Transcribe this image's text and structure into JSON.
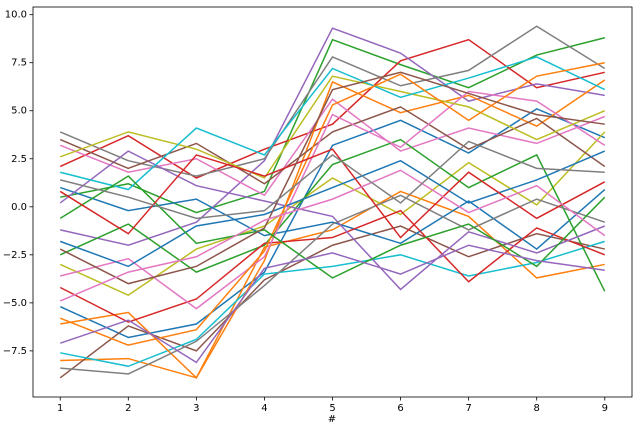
{
  "chart_data": {
    "type": "line",
    "x_label": "#",
    "x": [
      1,
      2,
      3,
      4,
      5,
      6,
      7,
      8,
      9
    ],
    "xlim": [
      0.6,
      9.4
    ],
    "xticks": [
      1,
      2,
      3,
      4,
      5,
      6,
      7,
      8,
      9
    ],
    "ylim": [
      -9.9,
      10.4
    ],
    "yticks": [
      {
        "value": -7.5,
        "label": "−7.5"
      },
      {
        "value": -5,
        "label": "−5.0"
      },
      {
        "value": -2.5,
        "label": "−2.5"
      },
      {
        "value": 0,
        "label": "0.0"
      },
      2.5,
      {
        "value": 5,
        "label": "5.0"
      },
      7.5,
      {
        "value": 10,
        "label": "10.0"
      }
    ],
    "series": [
      {
        "color": "#1f77b4",
        "values": [
          -5.2,
          -6.8,
          -6.1,
          -3.4,
          3.2,
          4.5,
          2.8,
          5.1,
          3.6
        ]
      },
      {
        "color": "#ff7f0e",
        "values": [
          -8.0,
          -7.9,
          -8.9,
          -2.1,
          -1.2,
          0.8,
          -0.5,
          -3.7,
          -3.0
        ]
      },
      {
        "color": "#2ca02c",
        "values": [
          0.5,
          1.2,
          -0.3,
          0.8,
          8.7,
          7.4,
          6.2,
          7.9,
          8.8
        ]
      },
      {
        "color": "#d62728",
        "values": [
          2.1,
          3.7,
          1.5,
          3.0,
          4.3,
          7.6,
          8.7,
          6.2,
          7.0
        ]
      },
      {
        "color": "#9467bd",
        "values": [
          -1.2,
          -2.0,
          -0.8,
          2.4,
          9.3,
          8.0,
          5.5,
          6.4,
          5.8
        ]
      },
      {
        "color": "#8c564b",
        "values": [
          -8.9,
          -6.2,
          -7.5,
          -3.8,
          -2.0,
          -1.0,
          -2.6,
          -1.4,
          -2.2
        ]
      },
      {
        "color": "#e377c2",
        "values": [
          3.2,
          1.8,
          2.5,
          0.6,
          5.6,
          2.9,
          4.1,
          3.3,
          4.7
        ]
      },
      {
        "color": "#7f7f7f",
        "values": [
          3.9,
          2.4,
          1.6,
          2.5,
          7.8,
          6.3,
          7.1,
          9.4,
          7.2
        ]
      },
      {
        "color": "#bcbd22",
        "values": [
          -3.0,
          -4.6,
          -2.2,
          -1.0,
          1.5,
          -0.4,
          2.3,
          0.1,
          3.9
        ]
      },
      {
        "color": "#17becf",
        "values": [
          -7.6,
          -8.3,
          -6.9,
          -3.5,
          -3.1,
          -2.5,
          -3.6,
          -2.9,
          -1.8
        ]
      },
      {
        "color": "#1f77b4",
        "values": [
          1.0,
          -0.2,
          0.4,
          -1.5,
          -0.8,
          -1.9,
          0.3,
          -2.2,
          0.9
        ]
      },
      {
        "color": "#ff7f0e",
        "values": [
          -6.1,
          -5.5,
          -8.9,
          -2.8,
          6.5,
          4.9,
          5.8,
          4.2,
          6.6
        ]
      },
      {
        "color": "#2ca02c",
        "values": [
          -2.5,
          -0.9,
          -3.4,
          -2.0,
          2.2,
          3.5,
          1.0,
          2.7,
          -4.4
        ]
      },
      {
        "color": "#d62728",
        "values": [
          -4.2,
          -6.0,
          -4.8,
          -1.9,
          -1.6,
          -0.2,
          -3.9,
          -1.1,
          -2.5
        ]
      },
      {
        "color": "#9467bd",
        "values": [
          0.2,
          2.9,
          1.1,
          0.3,
          -0.5,
          -4.3,
          -1.3,
          -2.4,
          -1.0
        ]
      },
      {
        "color": "#8c564b",
        "values": [
          3.5,
          2.0,
          3.3,
          1.2,
          3.9,
          5.2,
          3.0,
          4.6,
          2.1
        ]
      },
      {
        "color": "#e377c2",
        "values": [
          -3.6,
          -2.7,
          -5.3,
          -2.6,
          4.8,
          3.1,
          6.0,
          5.5,
          3.2
        ]
      },
      {
        "color": "#7f7f7f",
        "values": [
          -8.4,
          -8.7,
          -7.0,
          -4.1,
          -0.9,
          0.6,
          -1.2,
          0.4,
          -0.8
        ]
      },
      {
        "color": "#bcbd22",
        "values": [
          2.6,
          3.9,
          3.0,
          1.5,
          6.8,
          6.0,
          5.2,
          3.5,
          5.0
        ]
      },
      {
        "color": "#17becf",
        "values": [
          1.8,
          0.9,
          4.1,
          2.7,
          7.2,
          5.7,
          6.7,
          7.8,
          6.1
        ]
      },
      {
        "color": "#1f77b4",
        "values": [
          -1.8,
          -3.1,
          -1.0,
          -0.4,
          1.0,
          2.4,
          0.2,
          1.4,
          2.9
        ]
      },
      {
        "color": "#ff7f0e",
        "values": [
          -5.8,
          -7.2,
          -6.4,
          -2.3,
          5.3,
          6.9,
          4.5,
          6.8,
          7.5
        ]
      },
      {
        "color": "#2ca02c",
        "values": [
          -0.6,
          1.6,
          -1.9,
          -1.2,
          -3.7,
          -2.0,
          -0.9,
          -3.1,
          0.5
        ]
      },
      {
        "color": "#d62728",
        "values": [
          0.8,
          -1.4,
          2.7,
          1.6,
          3.0,
          -1.6,
          1.8,
          -0.6,
          1.3
        ]
      },
      {
        "color": "#9467bd",
        "values": [
          -7.1,
          -5.9,
          -8.1,
          -3.2,
          -2.4,
          -3.5,
          -2.0,
          -2.8,
          -3.3
        ]
      },
      {
        "color": "#8c564b",
        "values": [
          -2.2,
          -4.0,
          -3.1,
          -1.1,
          6.1,
          7.0,
          5.9,
          4.8,
          4.3
        ]
      },
      {
        "color": "#e377c2",
        "values": [
          -4.9,
          -3.4,
          -2.6,
          -0.7,
          0.4,
          1.9,
          -0.3,
          1.1,
          -1.5
        ]
      },
      {
        "color": "#7f7f7f",
        "values": [
          1.4,
          0.5,
          -0.6,
          -0.2,
          2.7,
          0.2,
          3.4,
          2.0,
          1.8
        ]
      }
    ]
  }
}
